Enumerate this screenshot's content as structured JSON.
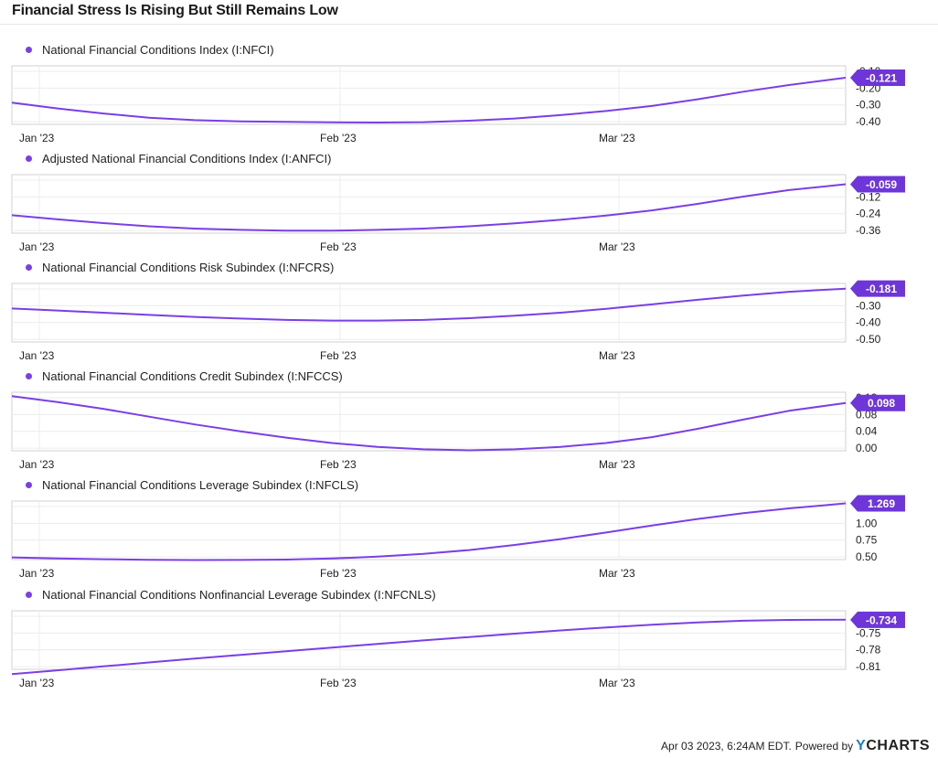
{
  "title": "Financial Stress Is Rising But Still Remains Low",
  "footer": {
    "timestamp": "Apr 03 2023, 6:24AM EDT.",
    "powered_by": "Powered by",
    "brand_prefix": "Y",
    "brand_rest": "CHARTS"
  },
  "colors": {
    "line": "#7b3fe4",
    "badge": "#6e36d8",
    "grid": "#ececec",
    "axis": "#d0d0d0",
    "text": "#222222"
  },
  "chart_data": [
    {
      "type": "line",
      "name": "National Financial Conditions Index (I:NFCI)",
      "x": [
        "Jan '23",
        "Feb '23",
        "Mar '23"
      ],
      "y_ticks": [
        "-0.10",
        "-0.20",
        "-0.30",
        "-0.40"
      ],
      "last_value": "-0.121",
      "points": [
        [
          0,
          -0.27
        ],
        [
          50,
          -0.305
        ],
        [
          100,
          -0.335
        ],
        [
          150,
          -0.36
        ],
        [
          200,
          -0.375
        ],
        [
          250,
          -0.382
        ],
        [
          300,
          -0.385
        ],
        [
          350,
          -0.388
        ],
        [
          400,
          -0.389
        ],
        [
          450,
          -0.387
        ],
        [
          500,
          -0.378
        ],
        [
          550,
          -0.365
        ],
        [
          600,
          -0.345
        ],
        [
          650,
          -0.32
        ],
        [
          700,
          -0.29
        ],
        [
          750,
          -0.25
        ],
        [
          800,
          -0.205
        ],
        [
          850,
          -0.165
        ],
        [
          912,
          -0.121
        ]
      ]
    },
    {
      "type": "line",
      "name": "Adjusted National Financial Conditions Index (I:ANFCI)",
      "x": [
        "Jan '23",
        "Feb '23",
        "Mar '23"
      ],
      "y_ticks": [
        "0.00",
        "-0.12",
        "-0.24",
        "-0.36"
      ],
      "last_value": "-0.059",
      "points": [
        [
          0,
          -0.25
        ],
        [
          50,
          -0.275
        ],
        [
          100,
          -0.298
        ],
        [
          150,
          -0.318
        ],
        [
          200,
          -0.332
        ],
        [
          250,
          -0.34
        ],
        [
          300,
          -0.345
        ],
        [
          350,
          -0.345
        ],
        [
          400,
          -0.34
        ],
        [
          450,
          -0.332
        ],
        [
          500,
          -0.318
        ],
        [
          550,
          -0.3
        ],
        [
          600,
          -0.278
        ],
        [
          650,
          -0.252
        ],
        [
          700,
          -0.22
        ],
        [
          750,
          -0.18
        ],
        [
          800,
          -0.135
        ],
        [
          850,
          -0.095
        ],
        [
          912,
          -0.059
        ]
      ]
    },
    {
      "type": "line",
      "name": "National Financial Conditions Risk Subindex (I:NFCRS)",
      "x": [
        "Jan '23",
        "Feb '23",
        "Mar '23"
      ],
      "y_ticks": [
        "-0.20",
        "-0.30",
        "-0.40",
        "-0.50"
      ],
      "last_value": "-0.181",
      "points": [
        [
          0,
          -0.3
        ],
        [
          50,
          -0.312
        ],
        [
          100,
          -0.325
        ],
        [
          150,
          -0.338
        ],
        [
          200,
          -0.35
        ],
        [
          250,
          -0.36
        ],
        [
          300,
          -0.368
        ],
        [
          350,
          -0.372
        ],
        [
          400,
          -0.372
        ],
        [
          450,
          -0.368
        ],
        [
          500,
          -0.358
        ],
        [
          550,
          -0.343
        ],
        [
          600,
          -0.325
        ],
        [
          650,
          -0.302
        ],
        [
          700,
          -0.275
        ],
        [
          750,
          -0.248
        ],
        [
          800,
          -0.222
        ],
        [
          850,
          -0.2
        ],
        [
          912,
          -0.181
        ]
      ]
    },
    {
      "type": "line",
      "name": "National Financial Conditions Credit Subindex (I:NFCCS)",
      "x": [
        "Jan '23",
        "Feb '23",
        "Mar '23"
      ],
      "y_ticks": [
        "0.12",
        "0.08",
        "0.04",
        "0.00"
      ],
      "last_value": "0.098",
      "points": [
        [
          0,
          0.112
        ],
        [
          50,
          0.1
        ],
        [
          100,
          0.086
        ],
        [
          150,
          0.07
        ],
        [
          200,
          0.054
        ],
        [
          250,
          0.04
        ],
        [
          300,
          0.027
        ],
        [
          350,
          0.016
        ],
        [
          400,
          0.008
        ],
        [
          450,
          0.003
        ],
        [
          500,
          0.001
        ],
        [
          550,
          0.003
        ],
        [
          600,
          0.008
        ],
        [
          650,
          0.016
        ],
        [
          700,
          0.028
        ],
        [
          750,
          0.045
        ],
        [
          800,
          0.064
        ],
        [
          850,
          0.082
        ],
        [
          912,
          0.098
        ]
      ]
    },
    {
      "type": "line",
      "name": "National Financial Conditions Leverage Subindex (I:NFCLS)",
      "x": [
        "Jan '23",
        "Feb '23",
        "Mar '23"
      ],
      "y_ticks": [
        "1.25",
        "1.00",
        "0.75",
        "0.50"
      ],
      "last_value": "1.269",
      "points": [
        [
          0,
          0.53
        ],
        [
          50,
          0.515
        ],
        [
          100,
          0.505
        ],
        [
          150,
          0.498
        ],
        [
          200,
          0.494
        ],
        [
          250,
          0.495
        ],
        [
          300,
          0.5
        ],
        [
          350,
          0.515
        ],
        [
          400,
          0.54
        ],
        [
          450,
          0.578
        ],
        [
          500,
          0.63
        ],
        [
          550,
          0.7
        ],
        [
          600,
          0.78
        ],
        [
          650,
          0.87
        ],
        [
          700,
          0.965
        ],
        [
          750,
          1.055
        ],
        [
          800,
          1.135
        ],
        [
          850,
          1.2
        ],
        [
          912,
          1.269
        ]
      ]
    },
    {
      "type": "line",
      "name": "National Financial Conditions Nonfinancial Leverage Subindex (I:NFCNLS)",
      "x": [
        "Jan '23",
        "Feb '23",
        "Mar '23"
      ],
      "y_ticks": [
        "-0.72",
        "-0.75",
        "-0.78",
        "-0.81"
      ],
      "last_value": "-0.734",
      "points": [
        [
          0,
          -0.8175
        ],
        [
          50,
          -0.8115
        ],
        [
          100,
          -0.8055
        ],
        [
          150,
          -0.7995
        ],
        [
          200,
          -0.7935
        ],
        [
          250,
          -0.7878
        ],
        [
          300,
          -0.7822
        ],
        [
          350,
          -0.7766
        ],
        [
          400,
          -0.771
        ],
        [
          450,
          -0.7656
        ],
        [
          500,
          -0.7603
        ],
        [
          550,
          -0.7552
        ],
        [
          600,
          -0.7502
        ],
        [
          650,
          -0.7456
        ],
        [
          700,
          -0.7414
        ],
        [
          750,
          -0.7379
        ],
        [
          800,
          -0.7353
        ],
        [
          850,
          -0.734
        ],
        [
          912,
          -0.7338
        ]
      ]
    }
  ]
}
